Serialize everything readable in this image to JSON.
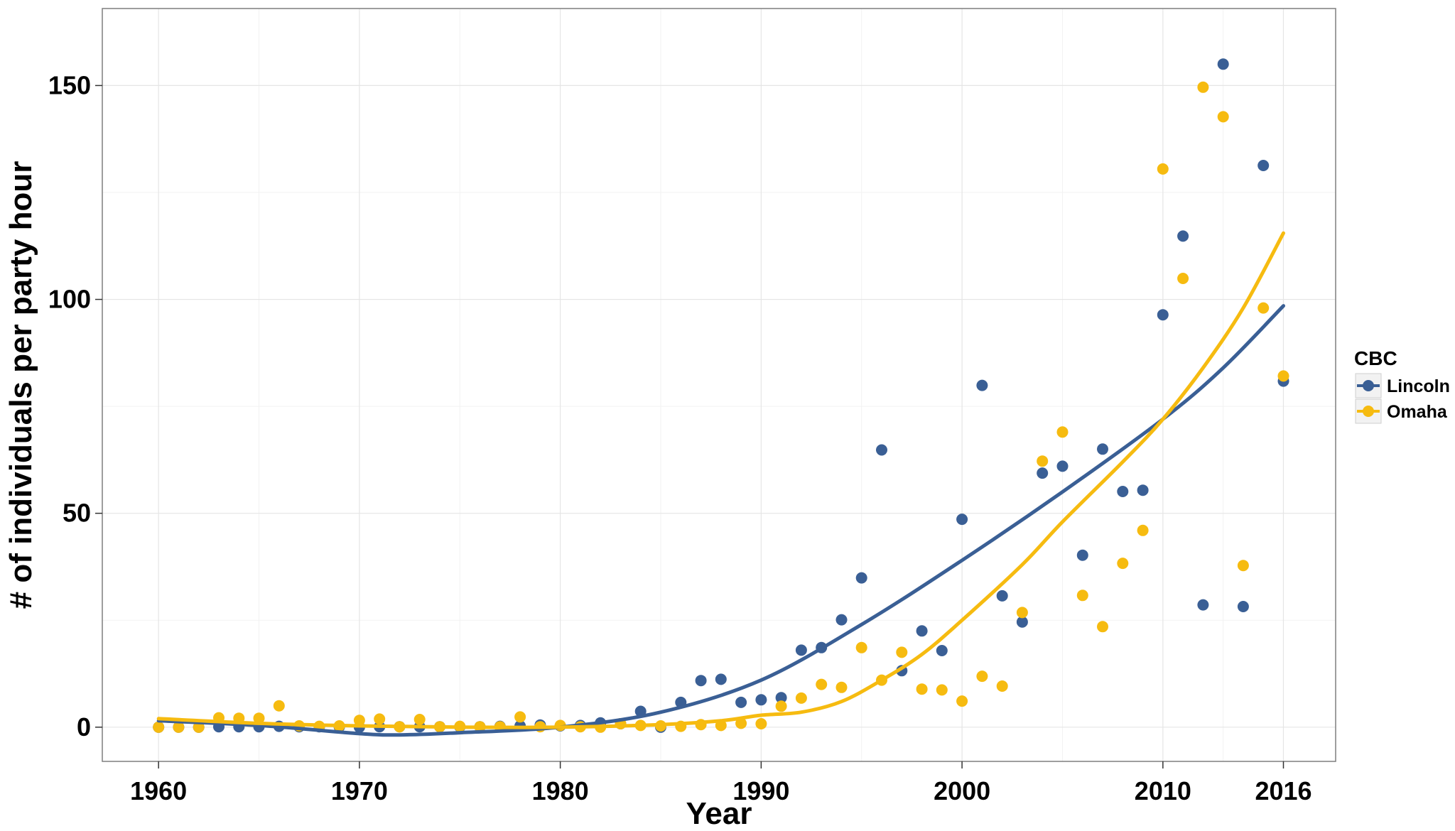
{
  "chart_data": {
    "type": "scatter",
    "xlabel": "Year",
    "ylabel": "# of individuals per party hour",
    "xlim": [
      1957.2,
      2018.6
    ],
    "ylim": [
      -8,
      168
    ],
    "x_ticks": [
      1960,
      1970,
      1980,
      1990,
      2000,
      2010,
      2016
    ],
    "x_tick_labels": [
      "1960",
      "1970",
      "1980",
      "1990",
      "2000",
      "2010",
      "2016"
    ],
    "y_ticks": [
      0,
      50,
      100,
      150
    ],
    "y_tick_labels": [
      "0",
      "50",
      "100",
      "150"
    ],
    "x_minor_grid": [
      1965,
      1975,
      1985,
      1995,
      2005,
      2013
    ],
    "y_minor_grid": [
      25,
      75,
      125
    ],
    "grid": true,
    "legend": {
      "title": "CBC",
      "position": "right"
    },
    "series": [
      {
        "name": "Lincoln",
        "color": "#3A5F95",
        "points": [
          [
            1960,
            0
          ],
          [
            1961,
            0
          ],
          [
            1962,
            0
          ],
          [
            1963,
            0.1
          ],
          [
            1964,
            0.1
          ],
          [
            1965,
            0.1
          ],
          [
            1966,
            0.2
          ],
          [
            1967,
            0.1
          ],
          [
            1968,
            0.1
          ],
          [
            1969,
            0.1
          ],
          [
            1970,
            0
          ],
          [
            1971,
            0.1
          ],
          [
            1972,
            0.1
          ],
          [
            1973,
            0.1
          ],
          [
            1974,
            0.1
          ],
          [
            1975,
            0.1
          ],
          [
            1976,
            0.1
          ],
          [
            1977,
            0.2
          ],
          [
            1978,
            0.3
          ],
          [
            1979,
            0.5
          ],
          [
            1980,
            0.3
          ],
          [
            1981,
            0.4
          ],
          [
            1982,
            1
          ],
          [
            1983,
            0.8
          ],
          [
            1984,
            3.7
          ],
          [
            1985,
            0
          ],
          [
            1986,
            5.8
          ],
          [
            1987,
            10.9
          ],
          [
            1988,
            11.2
          ],
          [
            1989,
            5.8
          ],
          [
            1990,
            6.4
          ],
          [
            1991,
            6.9
          ],
          [
            1992,
            18
          ],
          [
            1993,
            18.6
          ],
          [
            1994,
            25.1
          ],
          [
            1995,
            34.9
          ],
          [
            1996,
            64.8
          ],
          [
            1997,
            13.2
          ],
          [
            1998,
            22.5
          ],
          [
            1999,
            17.9
          ],
          [
            2000,
            48.6
          ],
          [
            2001,
            79.9
          ],
          [
            2002,
            30.7
          ],
          [
            2003,
            24.6
          ],
          [
            2004,
            59.4
          ],
          [
            2005,
            61
          ],
          [
            2006,
            40.2
          ],
          [
            2007,
            65
          ],
          [
            2008,
            55.1
          ],
          [
            2009,
            55.4
          ],
          [
            2010,
            96.4
          ],
          [
            2011,
            114.8
          ],
          [
            2012,
            28.6
          ],
          [
            2013,
            155
          ],
          [
            2014,
            28.2
          ],
          [
            2015,
            131.3
          ],
          [
            2016,
            80.9
          ]
        ],
        "trend": [
          [
            1960,
            1.5
          ],
          [
            1965,
            0.4
          ],
          [
            1970,
            -1.5
          ],
          [
            1972,
            -1.8
          ],
          [
            1975,
            -1.3
          ],
          [
            1980,
            0
          ],
          [
            1985,
            3.5
          ],
          [
            1990,
            11
          ],
          [
            1995,
            24
          ],
          [
            2000,
            39
          ],
          [
            2005,
            55
          ],
          [
            2010,
            72
          ],
          [
            2013,
            84
          ],
          [
            2016,
            98.5
          ]
        ]
      },
      {
        "name": "Omaha",
        "color": "#F6BB10",
        "points": [
          [
            1960,
            0
          ],
          [
            1961,
            0
          ],
          [
            1962,
            0
          ],
          [
            1963,
            2.2
          ],
          [
            1964,
            2.1
          ],
          [
            1965,
            2.1
          ],
          [
            1966,
            5
          ],
          [
            1967,
            0.3
          ],
          [
            1968,
            0.2
          ],
          [
            1969,
            0.3
          ],
          [
            1970,
            1.6
          ],
          [
            1971,
            1.9
          ],
          [
            1972,
            0.1
          ],
          [
            1973,
            1.8
          ],
          [
            1974,
            0.1
          ],
          [
            1975,
            0.2
          ],
          [
            1976,
            0.1
          ],
          [
            1977,
            0.1
          ],
          [
            1978,
            2.4
          ],
          [
            1979,
            0.1
          ],
          [
            1980,
            0.4
          ],
          [
            1981,
            0.1
          ],
          [
            1982,
            0
          ],
          [
            1983,
            0.8
          ],
          [
            1984,
            0.4
          ],
          [
            1985,
            0.3
          ],
          [
            1986,
            0.2
          ],
          [
            1987,
            0.6
          ],
          [
            1988,
            0.4
          ],
          [
            1989,
            0.9
          ],
          [
            1990,
            0.8
          ],
          [
            1991,
            4.9
          ],
          [
            1992,
            6.8
          ],
          [
            1993,
            10
          ],
          [
            1994,
            9.3
          ],
          [
            1995,
            18.6
          ],
          [
            1996,
            11
          ],
          [
            1997,
            17.5
          ],
          [
            1998,
            8.9
          ],
          [
            1999,
            8.7
          ],
          [
            2000,
            6.1
          ],
          [
            2001,
            11.9
          ],
          [
            2002,
            9.6
          ],
          [
            2003,
            26.8
          ],
          [
            2004,
            62.2
          ],
          [
            2005,
            69
          ],
          [
            2006,
            30.8
          ],
          [
            2007,
            23.5
          ],
          [
            2008,
            38.3
          ],
          [
            2009,
            46
          ],
          [
            2010,
            130.5
          ],
          [
            2011,
            104.9
          ],
          [
            2012,
            149.6
          ],
          [
            2013,
            142.7
          ],
          [
            2014,
            37.8
          ],
          [
            2015,
            98
          ],
          [
            2016,
            82.1
          ]
        ],
        "trend": [
          [
            1960,
            2
          ],
          [
            1965,
            0.9
          ],
          [
            1970,
            0.3
          ],
          [
            1975,
            0
          ],
          [
            1980,
            0
          ],
          [
            1985,
            0.6
          ],
          [
            1988,
            1.5
          ],
          [
            1990,
            2.8
          ],
          [
            1992,
            3.5
          ],
          [
            1994,
            6
          ],
          [
            1996,
            11
          ],
          [
            1998,
            17
          ],
          [
            2000,
            25
          ],
          [
            2003,
            38
          ],
          [
            2005,
            48
          ],
          [
            2008,
            62
          ],
          [
            2010,
            72
          ],
          [
            2012,
            84
          ],
          [
            2014,
            98
          ],
          [
            2016,
            115.5
          ]
        ]
      }
    ]
  }
}
